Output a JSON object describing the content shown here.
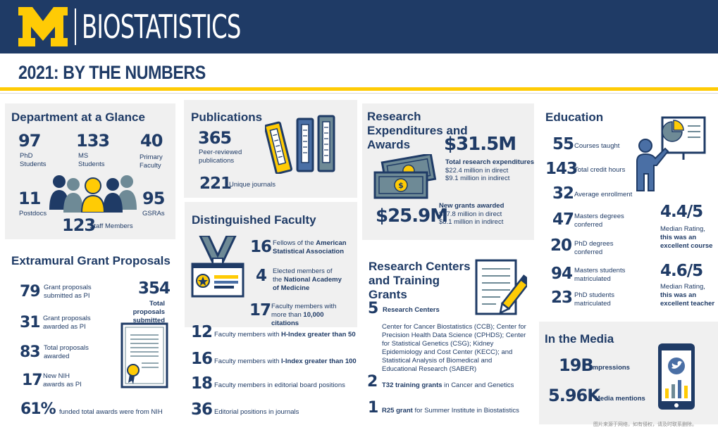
{
  "header": {
    "logo_letter": "M",
    "title": "BIOSTATISTICS",
    "subtitle": "2021: BY THE NUMBERS"
  },
  "colors": {
    "navy": "#1f3b66",
    "maize": "#ffcb05",
    "panel_gray": "#f0f0f0",
    "slate": "#6e8a96"
  },
  "glance": {
    "title": "Department at a Glance",
    "phd_value": "97",
    "phd_label": "PhD Students",
    "ms_value": "133",
    "ms_label": "MS Students",
    "primary_value": "40",
    "primary_label": "Primary Faculty",
    "postdocs_value": "11",
    "postdocs_label": "Postdocs",
    "gsras_value": "95",
    "gsras_label": "GSRAs",
    "staff_value": "123",
    "staff_label": "Staff Members"
  },
  "grants": {
    "title": "Extramural Grant Proposals",
    "items": [
      {
        "value": "79",
        "label": "Grant proposals submitted as PI"
      },
      {
        "value": "31",
        "label": "Grant proposals awarded as PI"
      },
      {
        "value": "83",
        "label": "Total proposals awarded"
      },
      {
        "value": "17",
        "label": "New NIH awards as PI"
      }
    ],
    "total_value": "354",
    "total_label": "Total proposals submitted",
    "nih_value": "61%",
    "nih_label": "funded total awards were from NIH"
  },
  "publications": {
    "title": "Publications",
    "peer_value": "365",
    "peer_label": "Peer-reviewed publications",
    "journals_value": "221",
    "journals_label": "Unique journals"
  },
  "faculty": {
    "title": "Distinguished Faculty",
    "asa_value": "16",
    "asa_prefix": "Fellows of the",
    "asa_bold": "American Statistical Association",
    "nam_value": "4",
    "nam_prefix": "Elected members of the",
    "nam_bold": "National Academy of Medicine",
    "cit_value": "17",
    "cit_prefix": "Faculty members with more than",
    "cit_bold": "10,000 citations",
    "h_value": "12",
    "h_prefix": "Faculty members with",
    "h_bold": "H-Index greater than 50",
    "i_value": "16",
    "i_prefix": "Faculty members with",
    "i_bold": "I-Index greater than 100",
    "ed_value": "18",
    "ed_label": "Faculty members in editorial board positions",
    "pos_value": "36",
    "pos_label": "Editorial positions in journals"
  },
  "research": {
    "title": "Research Expenditures and Awards",
    "exp_value": "$31.5M",
    "exp_label": "Total research expenditures",
    "exp_direct": "$22.4 million in direct",
    "exp_indirect": "$9.1 million in indirect",
    "grants_value": "$25.9M",
    "grants_label": "New grants awarded",
    "grants_direct": "$17.8 million in direct",
    "grants_indirect": "$8.1 million in indirect"
  },
  "centers": {
    "title": "Research Centers and Training Grants",
    "rc_value": "5",
    "rc_label": "Research Centers",
    "rc_desc": "Center for Cancer Biostatistics (CCB); Center for Precision Health Data Science (CPHDS); Center for Statistical Genetics (CSG); Kidney Epidemiology and Cost Center (KECC); and Statistical Analysis of Biomedical and Educational Research (SABER)",
    "t32_value": "2",
    "t32_bold": "T32 training grants",
    "t32_rest": "in Cancer and Genetics",
    "r25_value": "1",
    "r25_bold": "R25 grant",
    "r25_rest": "for Summer Institute in Biostatistics"
  },
  "education": {
    "title": "Education",
    "items": [
      {
        "value": "55",
        "label": "Courses taught"
      },
      {
        "value": "143",
        "label": "Total credit hours"
      },
      {
        "value": "32",
        "label": "Average enrollment"
      },
      {
        "value": "47",
        "label": "Masters degrees conferred"
      },
      {
        "value": "20",
        "label": "PhD degrees conferred"
      },
      {
        "value": "94",
        "label": "Masters students matriculated"
      },
      {
        "value": "23",
        "label": "PhD students matriculated"
      }
    ],
    "course_rating": "4.4/5",
    "course_pre": "Median Rating,",
    "course_bold": "this was an excellent course",
    "teacher_rating": "4.6/5",
    "teacher_pre": "Median Rating,",
    "teacher_bold": "this was an excellent teacher"
  },
  "media": {
    "title": "In the Media",
    "impressions_value": "19B",
    "impressions_label": "Impressions",
    "mentions_value": "5.96K",
    "mentions_label": "Media mentions"
  },
  "footer_note": "图片来源于网络，如有侵权，请及时联系删除。"
}
